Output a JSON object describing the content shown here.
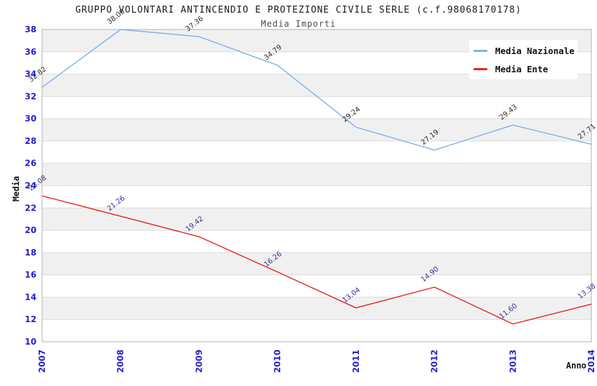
{
  "page": {
    "title": "GRUPPO VOLONTARI ANTINCENDIO E PROTEZIONE CIVILE SERLE (c.f.98068170178)",
    "subtitle": "Media Importi"
  },
  "chart_data": {
    "type": "line",
    "title": "GRUPPO VOLONTARI ANTINCENDIO E PROTEZIONE CIVILE SERLE (c.f.98068170178)",
    "subtitle": "Media Importi",
    "xlabel": "Anno",
    "ylabel": "Media",
    "x": [
      "2007",
      "2008",
      "2009",
      "2010",
      "2011",
      "2012",
      "2013",
      "2014"
    ],
    "series": [
      {
        "name": "Media Nazionale",
        "color": "#7eb1e6",
        "label_color": "#2b2b2b",
        "values": [
          32.82,
          38.0,
          37.36,
          34.79,
          29.24,
          27.19,
          29.43,
          27.71
        ],
        "point_labels": [
          "32.82",
          "38.00",
          "37.36",
          "34.79",
          "29.24",
          "27.19",
          "29.43",
          "27.71"
        ]
      },
      {
        "name": "Media Ente",
        "color": "#e62222",
        "label_color": "#333399",
        "values": [
          23.08,
          21.26,
          19.42,
          16.26,
          13.04,
          14.9,
          11.6,
          13.38
        ],
        "point_labels": [
          "23.08",
          "21.26",
          "19.42",
          "16.26",
          "13.04",
          "14.90",
          "11.60",
          "13.38"
        ]
      }
    ],
    "ylim": [
      10,
      38
    ],
    "ytick_step": 2,
    "yticks": [
      10,
      12,
      14,
      16,
      18,
      20,
      22,
      24,
      26,
      28,
      30,
      32,
      34,
      36,
      38
    ],
    "grid": true,
    "legend_position": "top-right",
    "tick_color": "#2222cc",
    "band_colors": [
      "#ffffff",
      "#f0f0f0"
    ],
    "gridline_color": "#dcdcdc",
    "border_color": "#b0b0b0"
  }
}
